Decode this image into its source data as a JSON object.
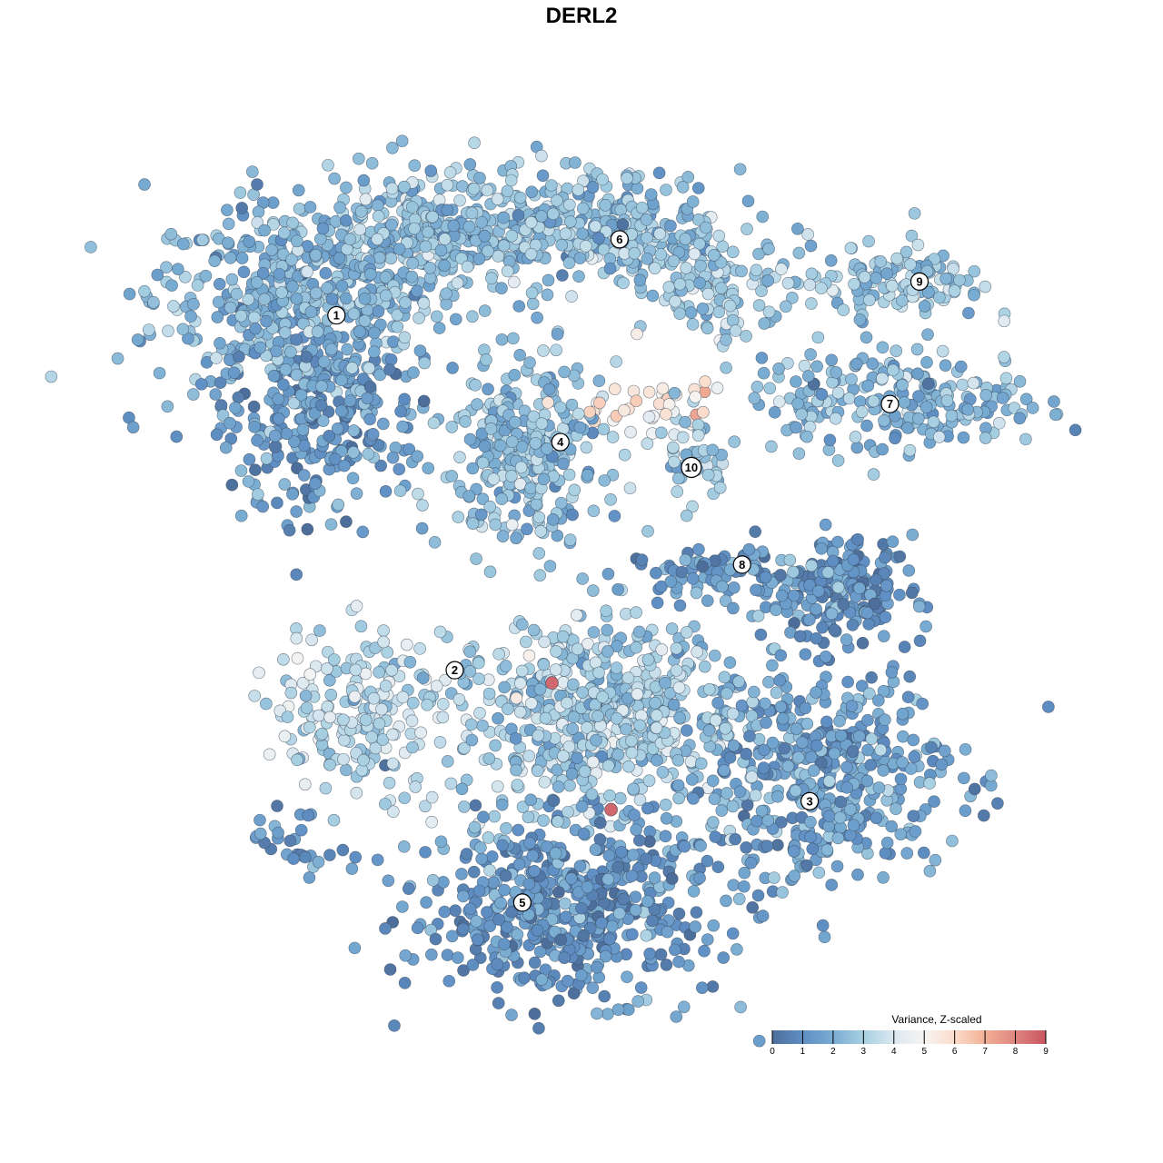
{
  "chart_data": {
    "type": "scatter",
    "title": "DERL2",
    "xlabel": "",
    "ylabel": "",
    "grid": false,
    "axes_visible": false,
    "xlim": [
      -10,
      10
    ],
    "ylim": [
      -10,
      10
    ],
    "note_points": "point cloud summarised as groups (center, spread, approximate count, typical value)",
    "groups": [
      {
        "cluster": "1",
        "center": [
          -6.7,
          6.7
        ],
        "spread": [
          2.3,
          1.6
        ],
        "n": 500,
        "value": 2.2
      },
      {
        "cluster": "1",
        "center": [
          -6.2,
          3.7
        ],
        "spread": [
          1.6,
          1.5
        ],
        "n": 250,
        "value": 1.3
      },
      {
        "cluster": "1",
        "center": [
          -3.7,
          8.2
        ],
        "spread": [
          1.8,
          1.0
        ],
        "n": 250,
        "value": 2.6
      },
      {
        "cluster": "6",
        "center": [
          0.0,
          8.4
        ],
        "spread": [
          2.5,
          0.9
        ],
        "n": 350,
        "value": 2.5
      },
      {
        "cluster": "6",
        "center": [
          3.2,
          6.9
        ],
        "spread": [
          1.2,
          0.7
        ],
        "n": 120,
        "value": 2.8
      },
      {
        "cluster": "9",
        "center": [
          7.5,
          7.1
        ],
        "spread": [
          1.4,
          0.6
        ],
        "n": 120,
        "value": 2.7
      },
      {
        "cluster": "7",
        "center": [
          7.5,
          4.3
        ],
        "spread": [
          2.3,
          0.8
        ],
        "n": 220,
        "value": 2.3
      },
      {
        "cluster": "4",
        "center": [
          -1.3,
          3.0
        ],
        "spread": [
          1.2,
          1.4
        ],
        "n": 300,
        "value": 2.5
      },
      {
        "cluster": "10",
        "center": [
          2.6,
          3.0
        ],
        "spread": [
          0.6,
          0.8
        ],
        "n": 50,
        "value": 2.7
      },
      {
        "cluster": "10",
        "center": [
          1.7,
          4.1
        ],
        "spread": [
          1.1,
          0.5
        ],
        "n": 40,
        "value": 5.5
      },
      {
        "cluster": "8",
        "center": [
          6.0,
          -0.2
        ],
        "spread": [
          1.2,
          0.8
        ],
        "n": 200,
        "value": 1.2
      },
      {
        "cluster": "8",
        "center": [
          3.4,
          0.2
        ],
        "spread": [
          1.6,
          0.4
        ],
        "n": 80,
        "value": 1.5
      },
      {
        "cluster": "2",
        "center": [
          -5.2,
          -3.0
        ],
        "spread": [
          1.4,
          1.3
        ],
        "n": 200,
        "value": 3.4
      },
      {
        "cluster": "2",
        "center": [
          0.4,
          -3.2
        ],
        "spread": [
          2.3,
          1.6
        ],
        "n": 600,
        "value": 2.9
      },
      {
        "cluster": "3",
        "center": [
          5.6,
          -4.5
        ],
        "spread": [
          2.2,
          1.7
        ],
        "n": 450,
        "value": 1.6
      },
      {
        "cluster": "5",
        "center": [
          -0.4,
          -7.7
        ],
        "spread": [
          2.4,
          1.4
        ],
        "n": 550,
        "value": 1.3
      },
      {
        "cluster": "5",
        "center": [
          -6.7,
          -6.2
        ],
        "spread": [
          0.8,
          0.5
        ],
        "n": 30,
        "value": 1.5
      }
    ],
    "highlight_points": [
      {
        "x": -0.7,
        "y": -2.4,
        "value": 8.6
      },
      {
        "x": 0.7,
        "y": -5.4,
        "value": 8.6
      }
    ],
    "cluster_labels": [
      {
        "label": "1",
        "x": -5.8,
        "y": 6.3
      },
      {
        "label": "2",
        "x": -3.0,
        "y": -2.1
      },
      {
        "label": "3",
        "x": 5.4,
        "y": -5.2
      },
      {
        "label": "4",
        "x": -0.5,
        "y": 3.3
      },
      {
        "label": "5",
        "x": -1.4,
        "y": -7.6
      },
      {
        "label": "6",
        "x": 0.9,
        "y": 8.1
      },
      {
        "label": "7",
        "x": 7.3,
        "y": 4.2
      },
      {
        "label": "8",
        "x": 3.8,
        "y": 0.4
      },
      {
        "label": "9",
        "x": 8.0,
        "y": 7.1
      },
      {
        "label": "10",
        "x": 2.6,
        "y": 2.7
      }
    ],
    "legend": {
      "title": "Variance, Z-scaled",
      "position": "bottom-right",
      "range": [
        0,
        9
      ],
      "ticks": [
        "0",
        "1",
        "2",
        "3",
        "4",
        "5",
        "6",
        "7",
        "8",
        "9"
      ],
      "colors": [
        "#4d6e9a",
        "#5f8fc4",
        "#79acd2",
        "#a8d0e2",
        "#dbe8f0",
        "#f6f4f2",
        "#fbdccb",
        "#f2b095",
        "#de8580",
        "#c85560"
      ]
    }
  }
}
